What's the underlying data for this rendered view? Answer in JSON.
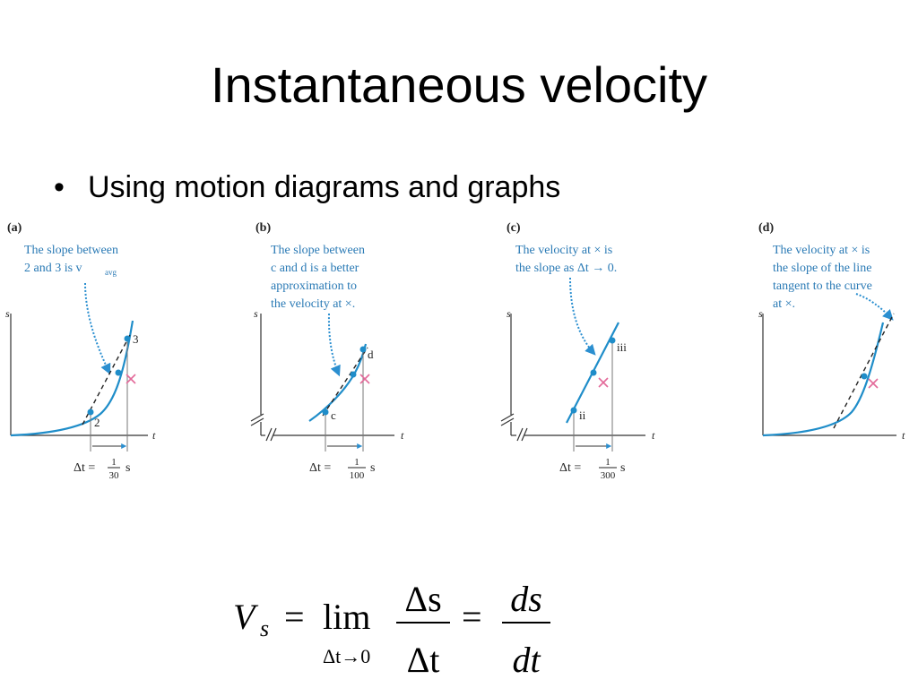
{
  "slide": {
    "title": "Instantaneous velocity",
    "bullet": "Using motion diagrams and graphs",
    "bullet_symbol": "•"
  },
  "panels": [
    {
      "letter": "(a)",
      "caption": [
        "The slope between",
        "2 and 3 is v",
        "avg"
      ],
      "points": [
        "2",
        "3"
      ],
      "axis_x": "t",
      "axis_y": "s",
      "delta": "Δt =",
      "frac_num": "1",
      "frac_den": "30",
      "unit": "s"
    },
    {
      "letter": "(b)",
      "caption": [
        "The slope between",
        "c and d is a better",
        "approximation to",
        "the velocity at ×."
      ],
      "points": [
        "c",
        "d"
      ],
      "axis_x": "t",
      "axis_y": "s",
      "delta": "Δt =",
      "frac_num": "1",
      "frac_den": "100",
      "unit": "s"
    },
    {
      "letter": "(c)",
      "caption": [
        "The velocity at × is",
        "the slope as Δt → 0."
      ],
      "points": [
        "ii",
        "iii"
      ],
      "axis_x": "t",
      "axis_y": "s",
      "delta": "Δt =",
      "frac_num": "1",
      "frac_den": "300",
      "unit": "s"
    },
    {
      "letter": "(d)",
      "caption": [
        "The velocity at × is",
        "the slope of the line",
        "tangent to the curve",
        "at ×."
      ],
      "axis_x": "t",
      "axis_y": "s"
    }
  ],
  "formula": {
    "lhs_V": "V",
    "lhs_sub": "s",
    "eq1": "=",
    "lim": "lim",
    "lim_sub": "Δt→0",
    "num1": "Δs",
    "den1": "Δt",
    "eq2": "=",
    "num2": "ds",
    "den2": "dt"
  },
  "colors": {
    "curve": "#1f8dc9",
    "caption": "#2a7ab5",
    "cross": "#e36a9a",
    "arrow": "#2b8fd0"
  }
}
